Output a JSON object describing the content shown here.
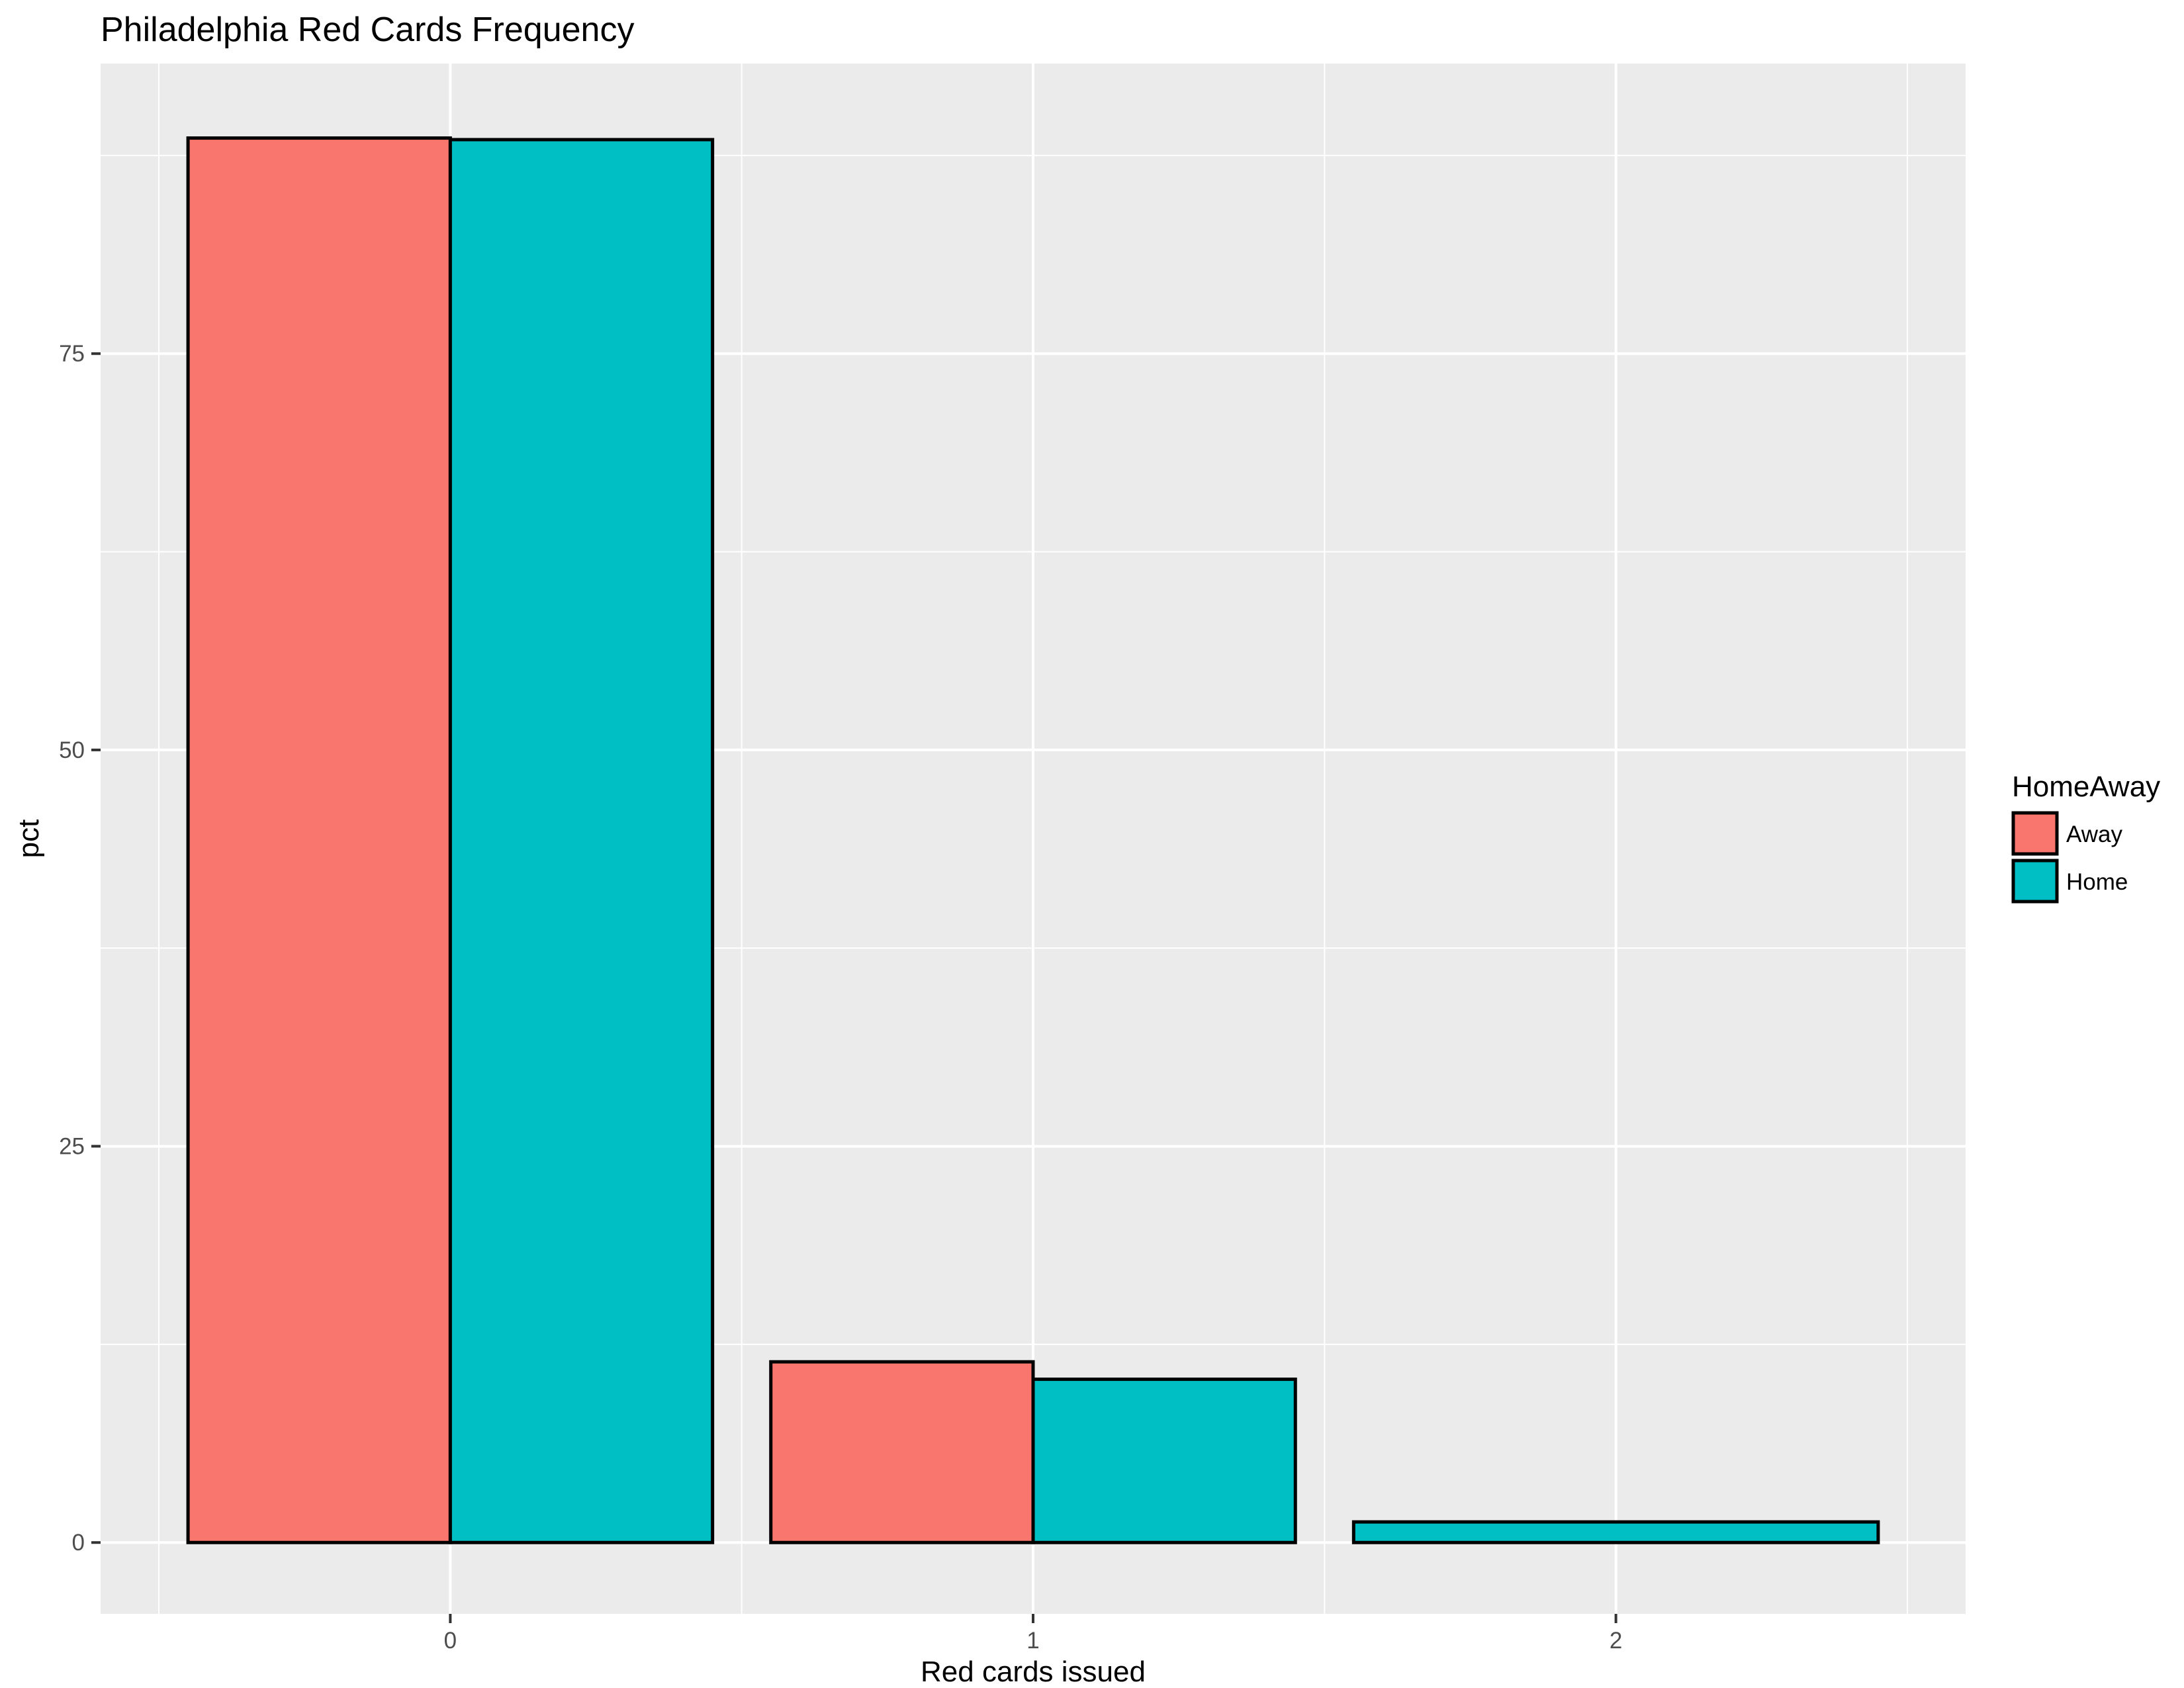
{
  "chart_data": {
    "type": "bar",
    "title": "Philadelphia Red Cards Frequency",
    "xlabel": "Red cards issued",
    "ylabel": "pct",
    "categories": [
      "0",
      "1",
      "2"
    ],
    "series": [
      {
        "name": "Away",
        "values": [
          88.6,
          11.4,
          null
        ],
        "color": "#F8766D"
      },
      {
        "name": "Home",
        "values": [
          88.5,
          10.3,
          1.3
        ],
        "color": "#00BFC4"
      }
    ],
    "ylim": [
      -4.5,
      93.3
    ],
    "yticks": [
      0,
      25,
      50,
      75
    ],
    "ytick_labels": [
      "0",
      "25",
      "50",
      "75"
    ],
    "grid": true,
    "legend": {
      "title": "HomeAway",
      "position": "right"
    },
    "colors": {
      "panel": "#EBEBEB",
      "grid": "#FFFFFF",
      "bar_outline": "#000000"
    }
  }
}
